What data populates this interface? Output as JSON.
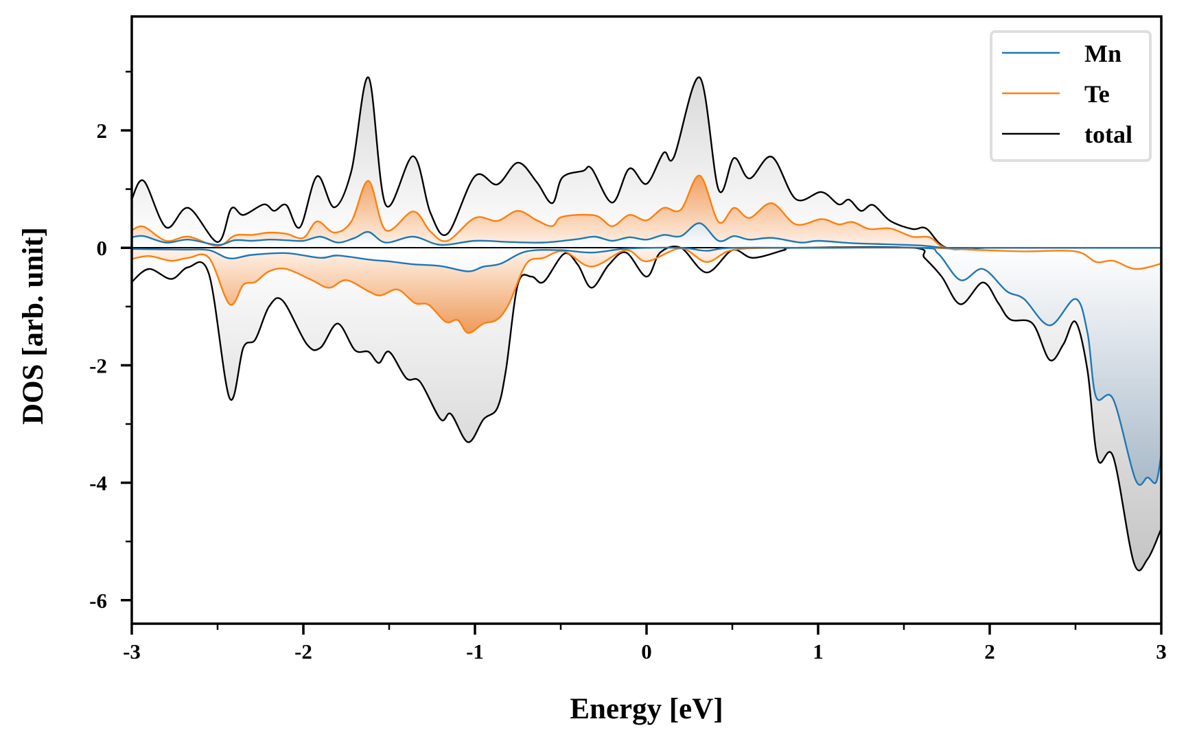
{
  "chart_data": {
    "type": "line",
    "title": "",
    "xlabel": "Energy [eV]",
    "ylabel": "DOS [arb. unit]",
    "xlim": [
      -3,
      3
    ],
    "ylim": [
      -6.4,
      3.94
    ],
    "xticks": [
      -3,
      -2,
      -1,
      0,
      1,
      2,
      3
    ],
    "xtick_labels": [
      "-3",
      "-2",
      "-1",
      "0",
      "1",
      "2",
      "3"
    ],
    "xminor": [
      -2.5,
      -1.5,
      -0.5,
      0.5,
      1.5,
      2.5
    ],
    "yticks": [
      2,
      0,
      -2,
      -4,
      -6
    ],
    "ytick_labels": [
      "2",
      "0",
      "-2",
      "-4",
      "-6"
    ],
    "yminor": [
      3,
      1,
      -1,
      -3,
      -5
    ],
    "grid": false,
    "legend_position": "top-right",
    "series": [
      {
        "name": "Mn",
        "color": "#1f77b4",
        "fill_color": "#7f9cb5",
        "spin_up": {
          "x": [
            -3,
            -2.93,
            -2.8,
            -2.67,
            -2.5,
            -2.4,
            -2.3,
            -2.2,
            -2.1,
            -2.0,
            -1.9,
            -1.8,
            -1.7,
            -1.62,
            -1.52,
            -1.36,
            -1.2,
            -1.0,
            -0.8,
            -0.6,
            -0.4,
            -0.3,
            -0.2,
            -0.1,
            0,
            0.1,
            0.2,
            0.31,
            0.42,
            0.51,
            0.6,
            0.73,
            0.9,
            1.0,
            1.2,
            1.4,
            1.6,
            1.75,
            2.0,
            2.5,
            3.0
          ],
          "y": [
            0.18,
            0.2,
            0.09,
            0.14,
            0.05,
            0.13,
            0.12,
            0.14,
            0.13,
            0.12,
            0.19,
            0.09,
            0.17,
            0.27,
            0.09,
            0.19,
            0.05,
            0.12,
            0.1,
            0.09,
            0.15,
            0.19,
            0.12,
            0.18,
            0.14,
            0.22,
            0.2,
            0.42,
            0.12,
            0.2,
            0.14,
            0.17,
            0.09,
            0.12,
            0.08,
            0.06,
            0.04,
            0,
            0,
            0,
            0
          ]
        },
        "spin_down": {
          "x": [
            -3,
            -2.7,
            -2.55,
            -2.43,
            -2.3,
            -2.1,
            -1.9,
            -1.8,
            -1.62,
            -1.5,
            -1.36,
            -1.2,
            -1.04,
            -0.95,
            -0.85,
            -0.7,
            -0.5,
            -0.32,
            -0.1,
            0.2,
            0.35,
            0.5,
            1.0,
            1.6,
            1.7,
            1.83,
            1.96,
            2.1,
            2.2,
            2.35,
            2.5,
            2.57,
            2.62,
            2.72,
            2.85,
            2.92,
            2.97,
            3.0
          ],
          "y": [
            -0.02,
            -0.03,
            -0.04,
            -0.18,
            -0.12,
            -0.09,
            -0.17,
            -0.13,
            -0.2,
            -0.23,
            -0.28,
            -0.31,
            -0.4,
            -0.32,
            -0.27,
            -0.06,
            -0.04,
            -0.08,
            -0.01,
            0,
            -0.05,
            0,
            0,
            0,
            -0.1,
            -0.55,
            -0.36,
            -0.74,
            -0.87,
            -1.32,
            -0.87,
            -1.45,
            -2.54,
            -2.58,
            -3.95,
            -3.91,
            -3.99,
            -3.5
          ]
        }
      },
      {
        "name": "Te",
        "color": "#ff7f0e",
        "fill_color": "#f0a060",
        "spin_up": {
          "x": [
            -3,
            -2.93,
            -2.8,
            -2.67,
            -2.5,
            -2.4,
            -2.3,
            -2.2,
            -2.1,
            -2.0,
            -1.92,
            -1.82,
            -1.72,
            -1.62,
            -1.52,
            -1.36,
            -1.26,
            -1.16,
            -1.0,
            -0.87,
            -0.75,
            -0.64,
            -0.55,
            -0.49,
            -0.3,
            -0.2,
            -0.1,
            0,
            0.1,
            0.2,
            0.31,
            0.42,
            0.51,
            0.6,
            0.73,
            0.87,
            1.02,
            1.12,
            1.2,
            1.3,
            1.42,
            1.55,
            1.65,
            1.75,
            2.0,
            2.5,
            3.0
          ],
          "y": [
            0.3,
            0.36,
            0.12,
            0.19,
            0.03,
            0.21,
            0.22,
            0.26,
            0.24,
            0.17,
            0.45,
            0.26,
            0.45,
            1.14,
            0.3,
            0.62,
            0.28,
            0.12,
            0.51,
            0.46,
            0.63,
            0.47,
            0.37,
            0.53,
            0.55,
            0.37,
            0.56,
            0.47,
            0.68,
            0.65,
            1.23,
            0.44,
            0.68,
            0.51,
            0.76,
            0.4,
            0.49,
            0.4,
            0.44,
            0.32,
            0.33,
            0.19,
            0.18,
            0,
            0,
            0,
            0
          ]
        },
        "spin_down": {
          "x": [
            -3,
            -2.9,
            -2.77,
            -2.67,
            -2.55,
            -2.43,
            -2.35,
            -2.28,
            -2.2,
            -2.1,
            -1.95,
            -1.85,
            -1.75,
            -1.62,
            -1.55,
            -1.45,
            -1.35,
            -1.27,
            -1.17,
            -1.1,
            -1.04,
            -0.95,
            -0.87,
            -0.8,
            -0.7,
            -0.6,
            -0.48,
            -0.32,
            -0.12,
            0,
            0.2,
            0.35,
            0.5,
            0.8,
            1.6,
            1.8,
            1.96,
            2.2,
            2.5,
            2.62,
            2.72,
            2.85,
            3.0
          ],
          "y": [
            -0.19,
            -0.14,
            -0.22,
            -0.17,
            -0.17,
            -0.96,
            -0.63,
            -0.58,
            -0.4,
            -0.36,
            -0.55,
            -0.68,
            -0.55,
            -0.74,
            -0.81,
            -0.71,
            -0.94,
            -0.97,
            -1.26,
            -1.23,
            -1.45,
            -1.29,
            -1.22,
            -0.94,
            -0.27,
            -0.17,
            -0.06,
            -0.32,
            -0.04,
            -0.23,
            -0.01,
            -0.24,
            -0.04,
            0,
            0,
            -0.02,
            -0.04,
            -0.06,
            -0.06,
            -0.24,
            -0.22,
            -0.36,
            -0.27
          ]
        }
      },
      {
        "name": "total",
        "color": "#000000",
        "fill_color": "#bdbdbd",
        "spin_up": {
          "x": [
            -3,
            -2.93,
            -2.8,
            -2.67,
            -2.5,
            -2.42,
            -2.35,
            -2.23,
            -2.17,
            -2.1,
            -2.02,
            -1.92,
            -1.82,
            -1.72,
            -1.62,
            -1.52,
            -1.36,
            -1.26,
            -1.16,
            -1.0,
            -0.87,
            -0.75,
            -0.64,
            -0.55,
            -0.49,
            -0.37,
            -0.32,
            -0.2,
            -0.1,
            0,
            0.1,
            0.16,
            0.31,
            0.42,
            0.51,
            0.6,
            0.73,
            0.87,
            1.02,
            1.12,
            1.18,
            1.25,
            1.32,
            1.42,
            1.55,
            1.63,
            1.75,
            2.0,
            2.5,
            3.0
          ],
          "y": [
            0.83,
            1.14,
            0.35,
            0.68,
            0.1,
            0.67,
            0.56,
            0.74,
            0.63,
            0.73,
            0.35,
            1.22,
            0.69,
            1.31,
            2.9,
            0.73,
            1.56,
            0.6,
            0.24,
            1.22,
            1.08,
            1.45,
            1.12,
            0.76,
            1.2,
            1.31,
            1.35,
            0.77,
            1.35,
            1.09,
            1.62,
            1.55,
            2.9,
            0.99,
            1.53,
            1.18,
            1.55,
            0.83,
            0.95,
            0.74,
            0.82,
            0.63,
            0.73,
            0.46,
            0.32,
            0.33,
            0,
            0,
            0,
            0
          ]
        },
        "spin_down": {
          "x": [
            -3,
            -2.9,
            -2.77,
            -2.67,
            -2.55,
            -2.43,
            -2.35,
            -2.28,
            -2.2,
            -2.12,
            -1.98,
            -1.9,
            -1.8,
            -1.7,
            -1.62,
            -1.56,
            -1.5,
            -1.4,
            -1.32,
            -1.2,
            -1.14,
            -1.04,
            -0.95,
            -0.87,
            -0.82,
            -0.75,
            -0.67,
            -0.6,
            -0.48,
            -0.4,
            -0.32,
            -0.22,
            -0.12,
            0,
            0.08,
            0.2,
            0.35,
            0.5,
            0.62,
            0.8,
            0.87,
            1.55,
            1.62,
            1.72,
            1.83,
            1.96,
            2.05,
            2.12,
            2.25,
            2.35,
            2.43,
            2.5,
            2.57,
            2.63,
            2.72,
            2.84,
            2.92,
            3.0
          ],
          "y": [
            -0.58,
            -0.36,
            -0.53,
            -0.33,
            -0.45,
            -2.56,
            -1.7,
            -1.56,
            -1.0,
            -0.9,
            -1.64,
            -1.7,
            -1.29,
            -1.74,
            -1.77,
            -1.96,
            -1.77,
            -2.22,
            -2.28,
            -2.92,
            -2.83,
            -3.31,
            -2.92,
            -2.73,
            -2.09,
            -0.62,
            -0.49,
            -0.58,
            -0.1,
            -0.29,
            -0.68,
            -0.29,
            -0.08,
            -0.49,
            -0.08,
            0,
            -0.42,
            -0.04,
            -0.17,
            -0.04,
            0,
            0,
            -0.17,
            -0.49,
            -0.96,
            -0.59,
            -0.94,
            -1.22,
            -1.29,
            -1.91,
            -1.64,
            -1.26,
            -2.09,
            -3.6,
            -3.56,
            -5.36,
            -5.3,
            -4.78
          ]
        }
      }
    ]
  }
}
